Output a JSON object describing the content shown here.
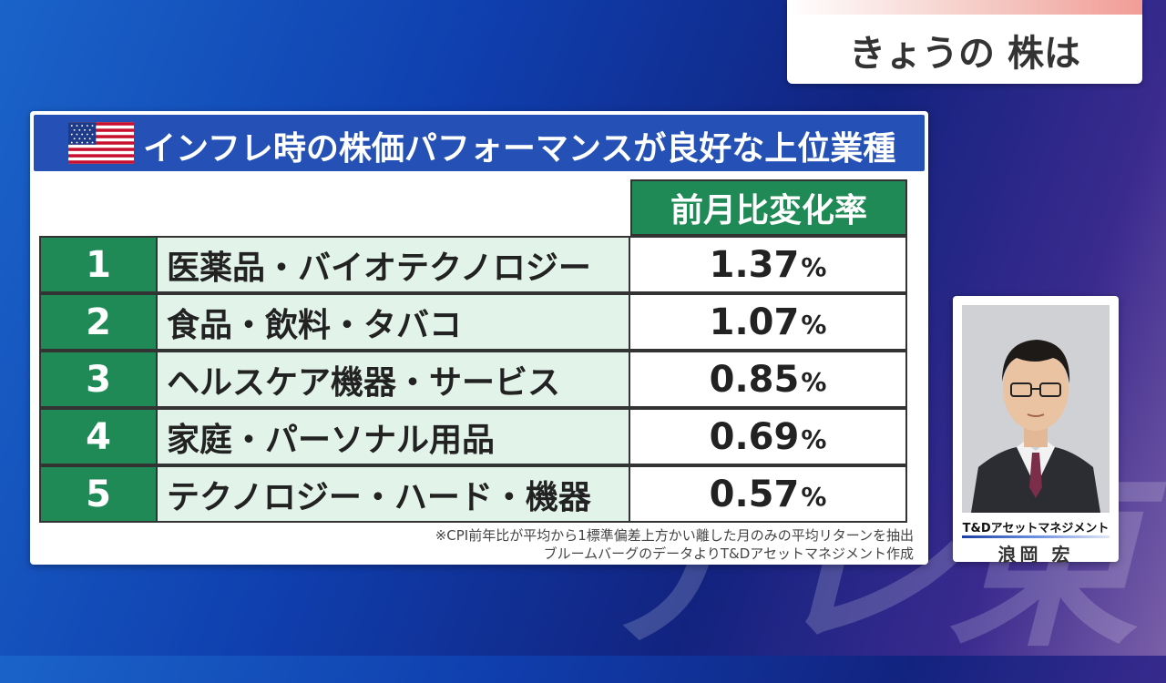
{
  "watermark": "テレ東",
  "segment": {
    "label": "きょうの 株は"
  },
  "panel": {
    "title": "インフレ時の株価パフォーマンスが良好な上位業種",
    "column_header": "前月比変化率",
    "rows": [
      {
        "rank": "1",
        "sector": "医薬品・バイオテクノロジー",
        "value": "1.37",
        "unit": "%"
      },
      {
        "rank": "2",
        "sector": "食品・飲料・タバコ",
        "value": "1.07",
        "unit": "%"
      },
      {
        "rank": "3",
        "sector": "ヘルスケア機器・サービス",
        "value": "0.85",
        "unit": "%"
      },
      {
        "rank": "4",
        "sector": "家庭・パーソナル用品",
        "value": "0.69",
        "unit": "%"
      },
      {
        "rank": "5",
        "sector": "テクノロジー・ハード・機器",
        "value": "0.57",
        "unit": "%"
      }
    ],
    "notes": [
      "※CPI前年比が平均から1標準偏差上方かい離した月のみの平均リターンを抽出",
      "ブルームバーグのデータよりT&Dアセットマネジメント作成"
    ]
  },
  "presenter": {
    "company": "T&Dアセットマネジメント",
    "name": "浪岡 宏"
  },
  "colors": {
    "header_blue": "#2551b6",
    "rank_green": "#1f8a56",
    "sector_bg": "#e2f3ea"
  }
}
